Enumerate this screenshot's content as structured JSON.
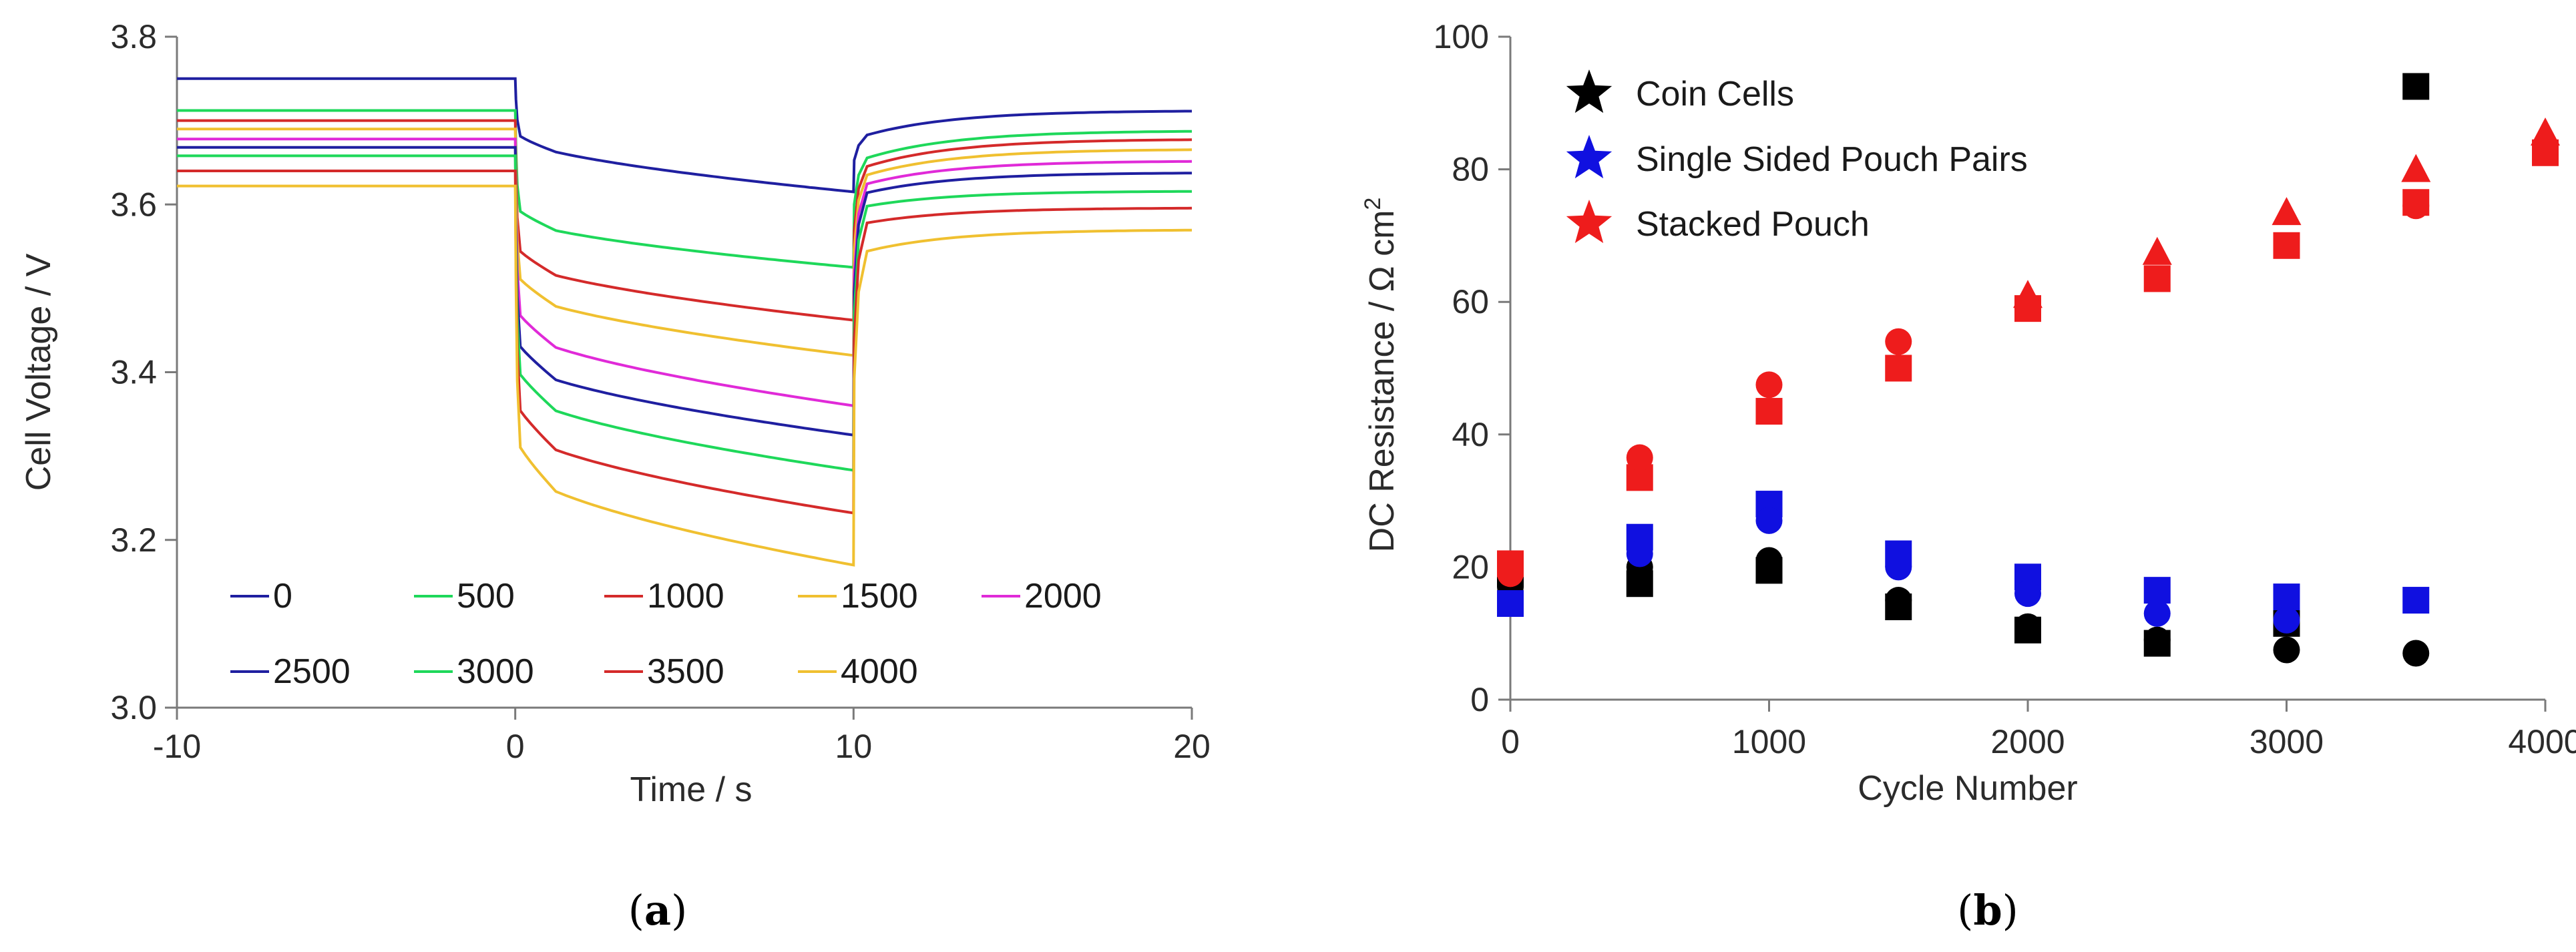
{
  "chart_data": [
    {
      "type": "line",
      "panel_label_open": "(",
      "panel_label_letter": "a",
      "panel_label_close": ")",
      "xlabel": "Time / s",
      "ylabel": "Cell Voltage / V",
      "xlim": [
        -10,
        20
      ],
      "ylim": [
        3.0,
        3.8
      ],
      "xticks": [
        -10,
        0,
        10,
        20
      ],
      "yticks": [
        "3.0",
        "3.2",
        "3.4",
        "3.6",
        "3.8"
      ],
      "series": [
        {
          "name": "0",
          "color": "#1f1fa0",
          "rest": 3.75,
          "pulse_drop": 3.68,
          "pulse_end": 3.615,
          "recover_jump": 3.678,
          "final": 3.712
        },
        {
          "name": "500",
          "color": "#1ed85a",
          "rest": 3.712,
          "pulse_drop": 3.585,
          "pulse_end": 3.525,
          "recover_jump": 3.65,
          "final": 3.688
        },
        {
          "name": "1000",
          "color": "#d42a2a",
          "rest": 3.7,
          "pulse_drop": 3.535,
          "pulse_end": 3.462,
          "recover_jump": 3.64,
          "final": 3.678
        },
        {
          "name": "1500",
          "color": "#f0c030",
          "rest": 3.69,
          "pulse_drop": 3.5,
          "pulse_end": 3.42,
          "recover_jump": 3.63,
          "final": 3.666
        },
        {
          "name": "2000",
          "color": "#e02ad8",
          "rest": 3.678,
          "pulse_drop": 3.455,
          "pulse_end": 3.36,
          "recover_jump": 3.62,
          "final": 3.652
        },
        {
          "name": "2500",
          "color": "#1f1fa0",
          "rest": 3.668,
          "pulse_drop": 3.415,
          "pulse_end": 3.325,
          "recover_jump": 3.61,
          "final": 3.638
        },
        {
          "name": "3000",
          "color": "#1ed85a",
          "rest": 3.658,
          "pulse_drop": 3.38,
          "pulse_end": 3.283,
          "recover_jump": 3.595,
          "final": 3.616
        },
        {
          "name": "3500",
          "color": "#d42a2a",
          "rest": 3.64,
          "pulse_drop": 3.335,
          "pulse_end": 3.232,
          "recover_jump": 3.575,
          "final": 3.596
        },
        {
          "name": "4000",
          "color": "#f0c030",
          "rest": 3.622,
          "pulse_drop": 3.29,
          "pulse_end": 3.17,
          "recover_jump": 3.54,
          "final": 3.57
        }
      ]
    },
    {
      "type": "scatter",
      "panel_label_open": "(",
      "panel_label_letter": "b",
      "panel_label_close": ")",
      "xlabel": "Cycle Number",
      "ylabel_main": "DC Resistance / Ω cm",
      "ylabel_sup": "2",
      "xlim": [
        0,
        4000
      ],
      "ylim": [
        0,
        100
      ],
      "xticks": [
        0,
        1000,
        2000,
        3000,
        4000
      ],
      "yticks": [
        0,
        20,
        40,
        60,
        80,
        100
      ],
      "legend": [
        {
          "name": "Coin Cells",
          "color": "#000000"
        },
        {
          "name": "Single Sided Pouch Pairs",
          "color": "#1010e0"
        },
        {
          "name": "Stacked Pouch",
          "color": "#ee1c1c"
        }
      ],
      "series": [
        {
          "group": "Coin Cells",
          "marker": "square",
          "color": "#000000",
          "x": [
            0,
            500,
            1000,
            1500,
            2000,
            2500,
            3000,
            3500
          ],
          "y": [
            19,
            17.5,
            19.5,
            14,
            10.5,
            8.5,
            11.5,
            92.5
          ]
        },
        {
          "group": "Coin Cells",
          "marker": "circle",
          "color": "#000000",
          "x": [
            0,
            500,
            1000,
            1500,
            2000,
            2500,
            3000,
            3500
          ],
          "y": [
            17,
            20,
            21,
            15,
            11,
            9,
            7.5,
            7
          ]
        },
        {
          "group": "Single Sided Pouch Pairs",
          "marker": "square",
          "color": "#1010e0",
          "x": [
            0,
            500,
            1000,
            1500,
            2000,
            2500,
            3000,
            3500
          ],
          "y": [
            14.5,
            24.5,
            29.5,
            22,
            18.5,
            16.5,
            15.5,
            15
          ]
        },
        {
          "group": "Single Sided Pouch Pairs",
          "marker": "circle",
          "color": "#1010e0",
          "x": [
            500,
            1000,
            1500,
            2000,
            2500,
            3000
          ],
          "y": [
            22,
            27,
            20,
            16,
            13,
            12
          ]
        },
        {
          "group": "Stacked Pouch",
          "marker": "square",
          "color": "#ee1c1c",
          "x": [
            0,
            500,
            1000,
            1500,
            2000,
            2500,
            3000,
            3500,
            4000
          ],
          "y": [
            20.5,
            33.5,
            43.5,
            50,
            59,
            63.5,
            68.5,
            75,
            82.5
          ]
        },
        {
          "group": "Stacked Pouch",
          "marker": "circle",
          "color": "#ee1c1c",
          "x": [
            0,
            500,
            1000,
            1500,
            3500,
            4000
          ],
          "y": [
            19,
            36.5,
            47.5,
            54,
            74.5,
            83
          ]
        },
        {
          "group": "Stacked Pouch",
          "marker": "triangle",
          "color": "#ee1c1c",
          "x": [
            2000,
            2500,
            3000,
            3500,
            4000
          ],
          "y": [
            61,
            67.5,
            73.5,
            80,
            85.5
          ]
        }
      ]
    }
  ]
}
